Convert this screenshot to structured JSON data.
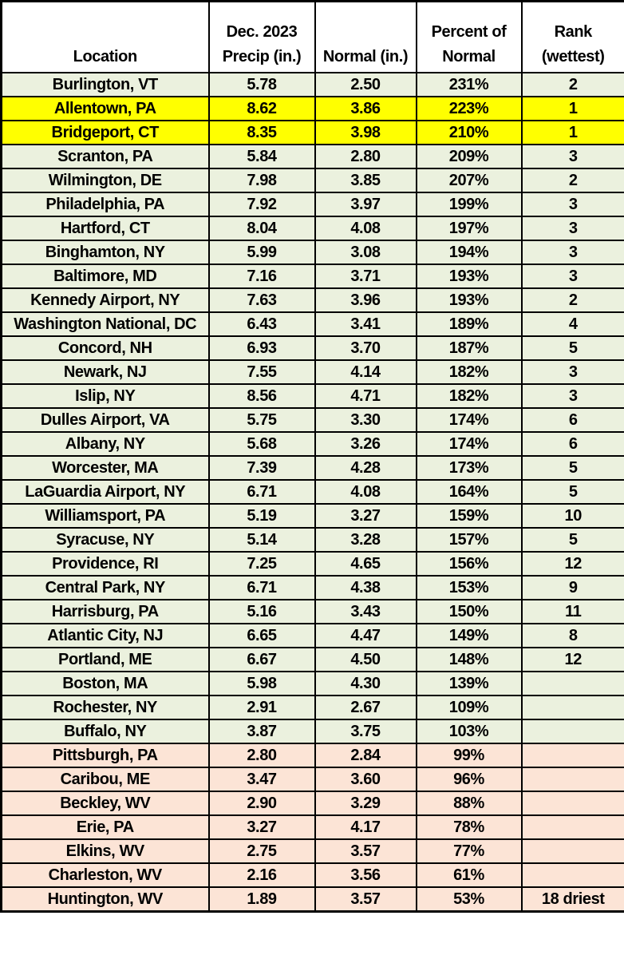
{
  "colors": {
    "green": "#EBF1DE",
    "yellow": "#FFFF00",
    "peach": "#FCE4D6",
    "header_bg": "#FFFFFF",
    "border": "#000000",
    "text": "#000000"
  },
  "table": {
    "headers": [
      [
        "Location"
      ],
      [
        "Dec. 2023",
        "Precip (in.)"
      ],
      [
        "Normal (in.)"
      ],
      [
        "Percent of",
        "Normal"
      ],
      [
        "Rank",
        "(wettest)"
      ]
    ],
    "rows": [
      {
        "location": "Burlington, VT",
        "precip": "5.78",
        "normal": "2.50",
        "percent": "231%",
        "rank": "2",
        "highlight": "green"
      },
      {
        "location": "Allentown, PA",
        "precip": "8.62",
        "normal": "3.86",
        "percent": "223%",
        "rank": "1",
        "highlight": "yellow"
      },
      {
        "location": "Bridgeport, CT",
        "precip": "8.35",
        "normal": "3.98",
        "percent": "210%",
        "rank": "1",
        "highlight": "yellow"
      },
      {
        "location": "Scranton, PA",
        "precip": "5.84",
        "normal": "2.80",
        "percent": "209%",
        "rank": "3",
        "highlight": "green"
      },
      {
        "location": "Wilmington, DE",
        "precip": "7.98",
        "normal": "3.85",
        "percent": "207%",
        "rank": "2",
        "highlight": "green"
      },
      {
        "location": "Philadelphia, PA",
        "precip": "7.92",
        "normal": "3.97",
        "percent": "199%",
        "rank": "3",
        "highlight": "green"
      },
      {
        "location": "Hartford, CT",
        "precip": "8.04",
        "normal": "4.08",
        "percent": "197%",
        "rank": "3",
        "highlight": "green"
      },
      {
        "location": "Binghamton, NY",
        "precip": "5.99",
        "normal": "3.08",
        "percent": "194%",
        "rank": "3",
        "highlight": "green"
      },
      {
        "location": "Baltimore, MD",
        "precip": "7.16",
        "normal": "3.71",
        "percent": "193%",
        "rank": "3",
        "highlight": "green"
      },
      {
        "location": "Kennedy Airport, NY",
        "precip": "7.63",
        "normal": "3.96",
        "percent": "193%",
        "rank": "2",
        "highlight": "green"
      },
      {
        "location": "Washington National, DC",
        "precip": "6.43",
        "normal": "3.41",
        "percent": "189%",
        "rank": "4",
        "highlight": "green"
      },
      {
        "location": "Concord, NH",
        "precip": "6.93",
        "normal": "3.70",
        "percent": "187%",
        "rank": "5",
        "highlight": "green"
      },
      {
        "location": "Newark, NJ",
        "precip": "7.55",
        "normal": "4.14",
        "percent": "182%",
        "rank": "3",
        "highlight": "green"
      },
      {
        "location": "Islip, NY",
        "precip": "8.56",
        "normal": "4.71",
        "percent": "182%",
        "rank": "3",
        "highlight": "green"
      },
      {
        "location": "Dulles Airport, VA",
        "precip": "5.75",
        "normal": "3.30",
        "percent": "174%",
        "rank": "6",
        "highlight": "green"
      },
      {
        "location": "Albany, NY",
        "precip": "5.68",
        "normal": "3.26",
        "percent": "174%",
        "rank": "6",
        "highlight": "green"
      },
      {
        "location": "Worcester, MA",
        "precip": "7.39",
        "normal": "4.28",
        "percent": "173%",
        "rank": "5",
        "highlight": "green"
      },
      {
        "location": "LaGuardia Airport, NY",
        "precip": "6.71",
        "normal": "4.08",
        "percent": "164%",
        "rank": "5",
        "highlight": "green"
      },
      {
        "location": "Williamsport, PA",
        "precip": "5.19",
        "normal": "3.27",
        "percent": "159%",
        "rank": "10",
        "highlight": "green"
      },
      {
        "location": "Syracuse, NY",
        "precip": "5.14",
        "normal": "3.28",
        "percent": "157%",
        "rank": "5",
        "highlight": "green"
      },
      {
        "location": "Providence, RI",
        "precip": "7.25",
        "normal": "4.65",
        "percent": "156%",
        "rank": "12",
        "highlight": "green"
      },
      {
        "location": "Central Park, NY",
        "precip": "6.71",
        "normal": "4.38",
        "percent": "153%",
        "rank": "9",
        "highlight": "green"
      },
      {
        "location": "Harrisburg, PA",
        "precip": "5.16",
        "normal": "3.43",
        "percent": "150%",
        "rank": "11",
        "highlight": "green"
      },
      {
        "location": "Atlantic City, NJ",
        "precip": "6.65",
        "normal": "4.47",
        "percent": "149%",
        "rank": "8",
        "highlight": "green"
      },
      {
        "location": "Portland, ME",
        "precip": "6.67",
        "normal": "4.50",
        "percent": "148%",
        "rank": "12",
        "highlight": "green"
      },
      {
        "location": "Boston, MA",
        "precip": "5.98",
        "normal": "4.30",
        "percent": "139%",
        "rank": "",
        "highlight": "green"
      },
      {
        "location": "Rochester, NY",
        "precip": "2.91",
        "normal": "2.67",
        "percent": "109%",
        "rank": "",
        "highlight": "green"
      },
      {
        "location": "Buffalo, NY",
        "precip": "3.87",
        "normal": "3.75",
        "percent": "103%",
        "rank": "",
        "highlight": "green"
      },
      {
        "location": "Pittsburgh, PA",
        "precip": "2.80",
        "normal": "2.84",
        "percent": "99%",
        "rank": "",
        "highlight": "peach"
      },
      {
        "location": "Caribou, ME",
        "precip": "3.47",
        "normal": "3.60",
        "percent": "96%",
        "rank": "",
        "highlight": "peach"
      },
      {
        "location": "Beckley, WV",
        "precip": "2.90",
        "normal": "3.29",
        "percent": "88%",
        "rank": "",
        "highlight": "peach"
      },
      {
        "location": "Erie, PA",
        "precip": "3.27",
        "normal": "4.17",
        "percent": "78%",
        "rank": "",
        "highlight": "peach"
      },
      {
        "location": "Elkins, WV",
        "precip": "2.75",
        "normal": "3.57",
        "percent": "77%",
        "rank": "",
        "highlight": "peach"
      },
      {
        "location": "Charleston, WV",
        "precip": "2.16",
        "normal": "3.56",
        "percent": "61%",
        "rank": "",
        "highlight": "peach"
      },
      {
        "location": "Huntington, WV",
        "precip": "1.89",
        "normal": "3.57",
        "percent": "53%",
        "rank": "18 driest",
        "highlight": "peach"
      }
    ]
  }
}
